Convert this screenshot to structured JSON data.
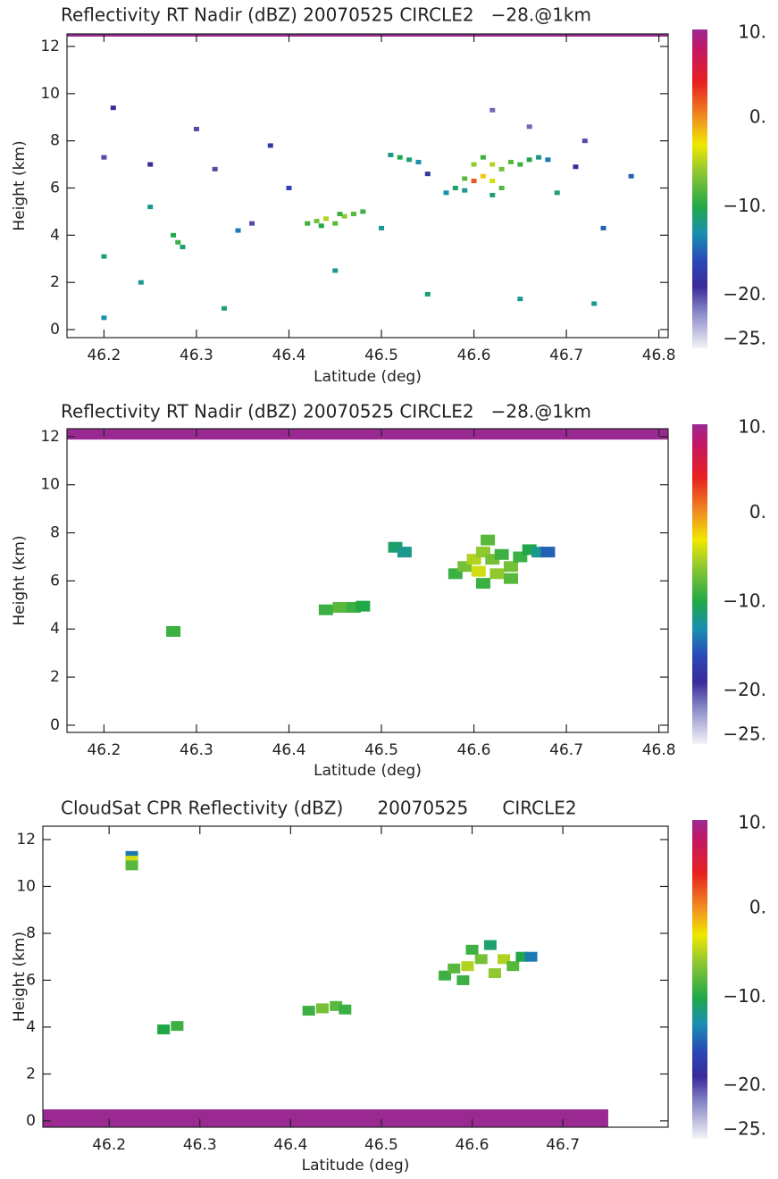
{
  "chart_data": [
    {
      "type": "heatmap",
      "title": "Reflectivity RT Nadir (dBZ) 20070525 CIRCLE2   −28.@1km",
      "xlabel": "Latitude (deg)",
      "ylabel": "Height (km)",
      "xlim": [
        46.16,
        46.81
      ],
      "ylim": [
        -0.34,
        12.53
      ],
      "xticks": [
        46.2,
        46.3,
        46.4,
        46.5,
        46.6,
        46.7,
        46.8
      ],
      "yticks": [
        0,
        2,
        4,
        6,
        8,
        10,
        12
      ],
      "clim": [
        -26,
        10
      ],
      "cticks": [
        {
          "value": 10,
          "label": "10."
        },
        {
          "value": 0,
          "label": "0."
        },
        {
          "value": -10,
          "label": "−10."
        },
        {
          "value": -20,
          "label": "−20."
        },
        {
          "value": -25,
          "label": "−25."
        }
      ],
      "colorscale": [
        [
          -26,
          "#f4f4f8"
        ],
        [
          -22,
          "#8a8ac8"
        ],
        [
          -19,
          "#3a2a9a"
        ],
        [
          -16,
          "#2a4ab8"
        ],
        [
          -13,
          "#1890b0"
        ],
        [
          -10,
          "#20a848"
        ],
        [
          -6,
          "#90c830"
        ],
        [
          -3,
          "#f0e800"
        ],
        [
          0,
          "#f09020"
        ],
        [
          4,
          "#e82020"
        ],
        [
          8,
          "#c01868"
        ],
        [
          10,
          "#9a2a92"
        ]
      ],
      "bands": [
        {
          "x": [
            46.16,
            46.81
          ],
          "y": [
            12.42,
            12.53
          ],
          "value": 10
        }
      ],
      "x": [
        46.42,
        46.43,
        46.44,
        46.45,
        46.46,
        46.47,
        46.48,
        46.435,
        46.455,
        46.58,
        46.59,
        46.6,
        46.61,
        46.6,
        46.61,
        46.62,
        46.63,
        46.64,
        46.65,
        46.66,
        46.67,
        46.68,
        46.62,
        46.63,
        46.59,
        46.57,
        46.62,
        46.51,
        46.52,
        46.53,
        46.54,
        46.275,
        46.28,
        46.285,
        46.2,
        46.25,
        46.32,
        46.38,
        46.4,
        46.36,
        46.345,
        46.55,
        46.71,
        46.72,
        46.66,
        46.62,
        46.3,
        46.21,
        46.25,
        46.2,
        46.24,
        46.45,
        46.55,
        46.65,
        46.73,
        46.33,
        46.2,
        46.74,
        46.5,
        46.69,
        46.77
      ],
      "y": [
        4.5,
        4.6,
        4.7,
        4.5,
        4.8,
        4.9,
        5.0,
        4.4,
        4.9,
        6.0,
        6.4,
        6.3,
        6.5,
        7.0,
        7.3,
        7.0,
        6.8,
        7.1,
        7.0,
        7.2,
        7.3,
        7.2,
        6.3,
        6.0,
        5.9,
        5.8,
        5.7,
        7.4,
        7.3,
        7.2,
        7.1,
        4.0,
        3.7,
        3.5,
        7.3,
        7.0,
        6.8,
        7.8,
        6.0,
        4.5,
        4.2,
        6.6,
        6.9,
        8.0,
        8.6,
        9.3,
        8.5,
        9.4,
        5.2,
        3.1,
        2.0,
        2.5,
        1.5,
        1.3,
        1.1,
        0.9,
        0.5,
        4.3,
        4.3,
        5.8,
        6.5
      ],
      "values": [
        -9,
        -7,
        -5,
        -8,
        -6,
        -8,
        -9,
        -10,
        -9,
        -11,
        -8,
        2,
        -2,
        -6,
        -9,
        -5,
        -7,
        -8,
        -9,
        -10,
        -12,
        -14,
        -4,
        -8,
        -12,
        -13,
        -11,
        -12,
        -10,
        -11,
        -13,
        -10,
        -9,
        -11,
        -20,
        -19,
        -20,
        -18,
        -17,
        -20,
        -14,
        -18,
        -19,
        -20,
        -21,
        -21,
        -20,
        -19,
        -12,
        -11,
        -12,
        -12,
        -11,
        -12,
        -12,
        -11,
        -13,
        -15,
        -12,
        -11,
        -15
      ]
    },
    {
      "type": "heatmap",
      "title": "Reflectivity RT Nadir (dBZ) 20070525 CIRCLE2   −28.@1km",
      "xlabel": "Latitude (deg)",
      "ylabel": "Height (km)",
      "xlim": [
        46.16,
        46.81
      ],
      "ylim": [
        -0.3,
        12.33
      ],
      "xticks": [
        46.2,
        46.3,
        46.4,
        46.5,
        46.6,
        46.7,
        46.8
      ],
      "yticks": [
        0,
        2,
        4,
        6,
        8,
        10,
        12
      ],
      "clim": [
        -26,
        10
      ],
      "cticks": [
        {
          "value": 10,
          "label": "10."
        },
        {
          "value": 0,
          "label": "0."
        },
        {
          "value": -10,
          "label": "−10."
        },
        {
          "value": -20,
          "label": "−20."
        },
        {
          "value": -25,
          "label": "−25."
        }
      ],
      "colorscale": [
        [
          -26,
          "#f4f4f8"
        ],
        [
          -22,
          "#8a8ac8"
        ],
        [
          -19,
          "#3a2a9a"
        ],
        [
          -16,
          "#2a4ab8"
        ],
        [
          -13,
          "#1890b0"
        ],
        [
          -10,
          "#20a848"
        ],
        [
          -6,
          "#90c830"
        ],
        [
          -3,
          "#f0e800"
        ],
        [
          0,
          "#f09020"
        ],
        [
          4,
          "#e82020"
        ],
        [
          8,
          "#c01868"
        ],
        [
          10,
          "#9a2a92"
        ]
      ],
      "bands": [
        {
          "x": [
            46.16,
            46.81
          ],
          "y": [
            11.88,
            12.33
          ],
          "value": 10
        }
      ],
      "x": [
        46.275,
        46.44,
        46.455,
        46.47,
        46.48,
        46.515,
        46.525,
        46.58,
        46.59,
        46.6,
        46.605,
        46.61,
        46.615,
        46.62,
        46.625,
        46.63,
        46.64,
        46.65,
        46.66,
        46.67,
        46.68,
        46.61,
        46.64
      ],
      "y": [
        3.9,
        4.8,
        4.9,
        4.9,
        4.95,
        7.4,
        7.2,
        6.3,
        6.6,
        6.9,
        6.4,
        7.2,
        7.7,
        6.9,
        6.3,
        7.1,
        6.6,
        7.0,
        7.3,
        7.2,
        7.2,
        5.9,
        6.1
      ],
      "values": [
        -9,
        -9,
        -8,
        -9,
        -10,
        -11,
        -12,
        -9,
        -7,
        -5,
        -4,
        -6,
        -8,
        -7,
        -6,
        -9,
        -7,
        -9,
        -10,
        -12,
        -15,
        -9,
        -8
      ]
    },
    {
      "type": "heatmap",
      "title": "CloudSat CPR Reflectivity (dBZ)      20070525      CIRCLE2",
      "xlabel": "Latitude (deg)",
      "ylabel": "Height (km)",
      "xlim": [
        46.127,
        46.816
      ],
      "ylim": [
        -0.27,
        12.57
      ],
      "xticks": [
        46.2,
        46.3,
        46.4,
        46.5,
        46.6,
        46.7
      ],
      "yticks": [
        0,
        2,
        4,
        6,
        8,
        10,
        12
      ],
      "clim": [
        -26,
        10
      ],
      "cticks": [
        {
          "value": 10,
          "label": "10."
        },
        {
          "value": 0,
          "label": "0."
        },
        {
          "value": -10,
          "label": "−10."
        },
        {
          "value": -20,
          "label": "−20."
        },
        {
          "value": -25,
          "label": "−25."
        }
      ],
      "colorscale": [
        [
          -26,
          "#f4f4f8"
        ],
        [
          -22,
          "#8a8ac8"
        ],
        [
          -19,
          "#3a2a9a"
        ],
        [
          -16,
          "#2a4ab8"
        ],
        [
          -13,
          "#1890b0"
        ],
        [
          -10,
          "#20a848"
        ],
        [
          -6,
          "#90c830"
        ],
        [
          -3,
          "#f0e800"
        ],
        [
          0,
          "#f09020"
        ],
        [
          4,
          "#e82020"
        ],
        [
          8,
          "#c01868"
        ],
        [
          10,
          "#9a2a92"
        ]
      ],
      "bands": [
        {
          "x": [
            46.127,
            46.75
          ],
          "y": [
            -0.27,
            0.49
          ],
          "value": 10
        }
      ],
      "x": [
        46.225,
        46.225,
        46.225,
        46.26,
        46.275,
        46.42,
        46.435,
        46.45,
        46.46,
        46.57,
        46.58,
        46.595,
        46.6,
        46.61,
        46.62,
        46.625,
        46.635,
        46.645,
        46.655,
        46.665,
        46.59
      ],
      "y": [
        11.3,
        11.1,
        10.9,
        3.9,
        4.05,
        4.7,
        4.8,
        4.9,
        4.75,
        6.2,
        6.5,
        6.6,
        7.3,
        6.9,
        7.5,
        6.3,
        6.9,
        6.6,
        7.0,
        7.0,
        6.0
      ],
      "values": [
        -14,
        -4,
        -8,
        -10,
        -9,
        -9,
        -7,
        -8,
        -9,
        -9,
        -8,
        -5,
        -9,
        -7,
        -11,
        -6,
        -5,
        -8,
        -10,
        -14,
        -9
      ]
    }
  ]
}
